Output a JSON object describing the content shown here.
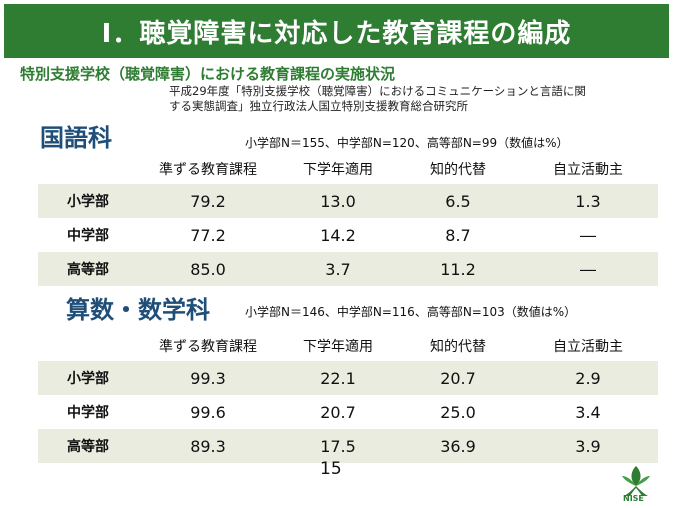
{
  "title": "Ⅰ．聴覚障害に対応した教育課程の編成",
  "subtitle": "特別支援学校（聴覚障害）における教育課程の実施状況",
  "source_line1": "平成29年度「特別支援学校（聴覚障害）におけるコミュニケーションと言語に関",
  "source_line2": "する実態調査」独立行政法人国立特別支援教育総合研究所",
  "sections": [
    {
      "title": "国語科",
      "note": "小学部N＝155、中学部N=120、高等部N=99（数値は%）",
      "columns": [
        "",
        "準ずる教育課程",
        "下学年適用",
        "知的代替",
        "自立活動主"
      ],
      "rows": [
        [
          "小学部",
          "79.2",
          "13.0",
          "6.5",
          "1.3"
        ],
        [
          "中学部",
          "77.2",
          "14.2",
          "8.7",
          "―"
        ],
        [
          "高等部",
          "85.0",
          "3.7",
          "11.2",
          "―"
        ]
      ]
    },
    {
      "title": "算数・数学科",
      "note": "小学部N＝146、中学部N=116、高等部N=103（数値は%）",
      "columns": [
        "",
        "準ずる教育課程",
        "下学年適用",
        "知的代替",
        "自立活動主"
      ],
      "rows": [
        [
          "小学部",
          "99.3",
          "22.1",
          "20.7",
          "2.9"
        ],
        [
          "中学部",
          "99.6",
          "20.7",
          "25.0",
          "3.4"
        ],
        [
          "高等部",
          "89.3",
          "17.5",
          "36.9",
          "3.9"
        ]
      ]
    }
  ],
  "page_number": "15",
  "logo_text": "NISE",
  "colors": {
    "title_bg": "#2e7d32",
    "subtitle": "#2e7d32",
    "section_title": "#1f4e79",
    "row_shade": "#e9ecde"
  }
}
